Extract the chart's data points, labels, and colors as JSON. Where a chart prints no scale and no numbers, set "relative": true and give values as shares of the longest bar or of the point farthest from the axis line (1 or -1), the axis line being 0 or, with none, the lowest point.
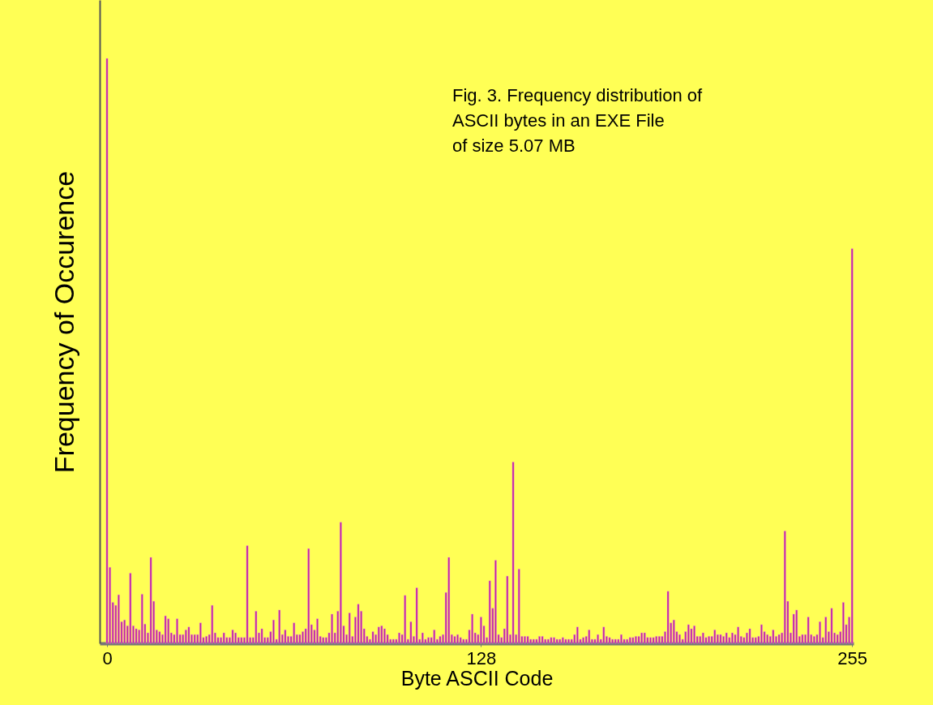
{
  "chart_data": {
    "type": "bar",
    "title": [
      "Fig. 3. Frequency distribution of",
      "ASCII bytes in an EXE File",
      "of size 5.07 MB"
    ],
    "xlabel": "Byte ASCII Code",
    "ylabel": "Frequency of Occurence",
    "relative": true,
    "color": "#c21fa3",
    "xlim": [
      -2.5,
      255.5
    ],
    "xticks": [
      0,
      128,
      255
    ],
    "grid": false,
    "x": [
      0,
      1,
      2,
      3,
      4,
      5,
      6,
      7,
      8,
      9,
      10,
      11,
      12,
      13,
      14,
      15,
      16,
      17,
      18,
      19,
      20,
      21,
      22,
      23,
      24,
      25,
      26,
      27,
      28,
      29,
      30,
      31,
      32,
      33,
      34,
      35,
      36,
      37,
      38,
      39,
      40,
      41,
      42,
      43,
      44,
      45,
      46,
      47,
      48,
      49,
      50,
      51,
      52,
      53,
      54,
      55,
      56,
      57,
      58,
      59,
      60,
      61,
      62,
      63,
      64,
      65,
      66,
      67,
      68,
      69,
      70,
      71,
      72,
      73,
      74,
      75,
      76,
      77,
      78,
      79,
      80,
      81,
      82,
      83,
      84,
      85,
      86,
      87,
      88,
      89,
      90,
      91,
      92,
      93,
      94,
      95,
      96,
      97,
      98,
      99,
      100,
      101,
      102,
      103,
      104,
      105,
      106,
      107,
      108,
      109,
      110,
      111,
      112,
      113,
      114,
      115,
      116,
      117,
      118,
      119,
      120,
      121,
      122,
      123,
      124,
      125,
      126,
      127,
      128,
      129,
      130,
      131,
      132,
      133,
      134,
      135,
      136,
      137,
      138,
      139,
      140,
      141,
      142,
      143,
      144,
      145,
      146,
      147,
      148,
      149,
      150,
      151,
      152,
      153,
      154,
      155,
      156,
      157,
      158,
      159,
      160,
      161,
      162,
      163,
      164,
      165,
      166,
      167,
      168,
      169,
      170,
      171,
      172,
      173,
      174,
      175,
      176,
      177,
      178,
      179,
      180,
      181,
      182,
      183,
      184,
      185,
      186,
      187,
      188,
      189,
      190,
      191,
      192,
      193,
      194,
      195,
      196,
      197,
      198,
      199,
      200,
      201,
      202,
      203,
      204,
      205,
      206,
      207,
      208,
      209,
      210,
      211,
      212,
      213,
      214,
      215,
      216,
      217,
      218,
      219,
      220,
      221,
      222,
      223,
      224,
      225,
      226,
      227,
      228,
      229,
      230,
      231,
      232,
      233,
      234,
      235,
      236,
      237,
      238,
      239,
      240,
      241,
      242,
      243,
      244,
      245,
      246,
      247,
      248,
      249,
      250,
      251,
      252,
      253,
      254,
      255
    ],
    "values": [
      1,
      0.13,
      0.07,
      0.065,
      0.083,
      0.037,
      0.04,
      0.03,
      0.12,
      0.03,
      0.025,
      0.023,
      0.084,
      0.033,
      0.018,
      0.147,
      0.072,
      0.023,
      0.02,
      0.015,
      0.047,
      0.042,
      0.018,
      0.015,
      0.042,
      0.015,
      0.015,
      0.023,
      0.028,
      0.015,
      0.015,
      0.015,
      0.035,
      0.01,
      0.012,
      0.015,
      0.065,
      0.018,
      0.01,
      0.01,
      0.018,
      0.01,
      0.01,
      0.023,
      0.018,
      0.01,
      0.01,
      0.01,
      0.167,
      0.01,
      0.01,
      0.055,
      0.018,
      0.025,
      0.01,
      0.01,
      0.02,
      0.04,
      0.007,
      0.057,
      0.015,
      0.023,
      0.012,
      0.012,
      0.035,
      0.015,
      0.015,
      0.02,
      0.025,
      0.162,
      0.032,
      0.023,
      0.042,
      0.012,
      0.01,
      0.01,
      0.018,
      0.05,
      0.018,
      0.055,
      0.207,
      0.03,
      0.015,
      0.052,
      0.012,
      0.045,
      0.067,
      0.055,
      0.025,
      0.012,
      0.007,
      0.02,
      0.015,
      0.028,
      0.03,
      0.025,
      0.015,
      0.007,
      0.007,
      0.007,
      0.018,
      0.015,
      0.082,
      0.007,
      0.037,
      0.012,
      0.095,
      0.007,
      0.018,
      0.007,
      0.01,
      0.01,
      0.023,
      0.007,
      0.012,
      0.015,
      0.087,
      0.147,
      0.015,
      0.012,
      0.015,
      0.01,
      0.007,
      0.007,
      0.023,
      0.05,
      0.018,
      0.015,
      0.045,
      0.03,
      0.01,
      0.107,
      0.06,
      0.142,
      0.015,
      0.01,
      0.025,
      0.115,
      0.015,
      0.31,
      0.015,
      0.127,
      0.012,
      0.012,
      0.012,
      0.007,
      0.007,
      0.007,
      0.012,
      0.012,
      0.007,
      0.007,
      0.01,
      0.01,
      0.007,
      0.007,
      0.01,
      0.007,
      0.007,
      0.007,
      0.015,
      0.028,
      0.007,
      0.01,
      0.012,
      0.023,
      0.007,
      0.007,
      0.015,
      0.007,
      0.028,
      0.012,
      0.01,
      0.007,
      0.007,
      0.007,
      0.015,
      0.007,
      0.007,
      0.01,
      0.01,
      0.012,
      0.012,
      0.018,
      0.018,
      0.01,
      0.01,
      0.01,
      0.012,
      0.012,
      0.012,
      0.02,
      0.089,
      0.035,
      0.04,
      0.02,
      0.015,
      0.007,
      0.02,
      0.032,
      0.025,
      0.03,
      0.012,
      0.012,
      0.018,
      0.01,
      0.012,
      0.012,
      0.023,
      0.015,
      0.015,
      0.012,
      0.018,
      0.01,
      0.018,
      0.015,
      0.028,
      0.012,
      0.01,
      0.018,
      0.025,
      0.01,
      0.01,
      0.012,
      0.032,
      0.02,
      0.015,
      0.012,
      0.023,
      0.012,
      0.015,
      0.018,
      0.192,
      0.072,
      0.018,
      0.05,
      0.057,
      0.012,
      0.015,
      0.015,
      0.045,
      0.015,
      0.012,
      0.015,
      0.037,
      0.01,
      0.045,
      0.02,
      0.06,
      0.018,
      0.015,
      0.02,
      0.07,
      0.032,
      0.045,
      0.675
    ]
  }
}
